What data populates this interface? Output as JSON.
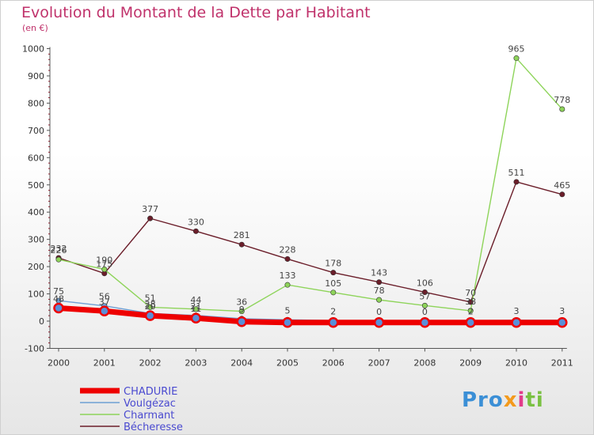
{
  "chart_data": {
    "type": "line",
    "title": "Evolution du Montant de la Dette par Habitant",
    "subtitle": "(en €)",
    "x": [
      "2000",
      "2001",
      "2002",
      "2003",
      "2004",
      "2005",
      "2006",
      "2007",
      "2008",
      "2009",
      "2010",
      "2011"
    ],
    "ylim": [
      -100,
      1000
    ],
    "yticks": [
      -100,
      0,
      100,
      200,
      300,
      400,
      500,
      600,
      700,
      800,
      900,
      1000
    ],
    "grid": false,
    "legend_position": "bottom-left",
    "series": [
      {
        "name": "CHADURIE",
        "color": "#ee0000",
        "values": [
          48,
          37,
          20,
          11,
          -2,
          -5,
          -5,
          -5,
          -5,
          -5,
          -5,
          -5
        ]
      },
      {
        "name": "Voulgézac",
        "color": "#6e9fd4",
        "values": [
          75,
          56,
          28,
          21,
          9,
          5,
          2,
          0,
          0,
          2,
          3,
          3
        ]
      },
      {
        "name": "Charmant",
        "color": "#8ed45a",
        "values": [
          226,
          190,
          51,
          44,
          36,
          133,
          105,
          78,
          57,
          38,
          965,
          778
        ]
      },
      {
        "name": "Bécheresse",
        "color": "#6b1e2a",
        "values": [
          232,
          175,
          377,
          330,
          281,
          228,
          178,
          143,
          106,
          70,
          511,
          465
        ]
      }
    ],
    "point_labels": {
      "CHADURIE": [
        "48",
        "37",
        "20",
        "11",
        "",
        "",
        "",
        "",
        "",
        "",
        "",
        ""
      ],
      "Voulgézac": [
        "75",
        "56",
        "28",
        "21",
        "9",
        "5",
        "2",
        "0",
        "0",
        "2",
        "3",
        "3"
      ],
      "Charmant": [
        "226",
        "190",
        "51",
        "44",
        "36",
        "133",
        "105",
        "78",
        "57",
        "38",
        "965",
        "778"
      ],
      "Bécheresse": [
        "232",
        "175",
        "377",
        "330",
        "281",
        "228",
        "178",
        "143",
        "106",
        "70",
        "511",
        "465"
      ]
    }
  },
  "logo": {
    "p1": "Pro",
    "p2": "x",
    "p3": "i",
    "p4": "ti"
  }
}
